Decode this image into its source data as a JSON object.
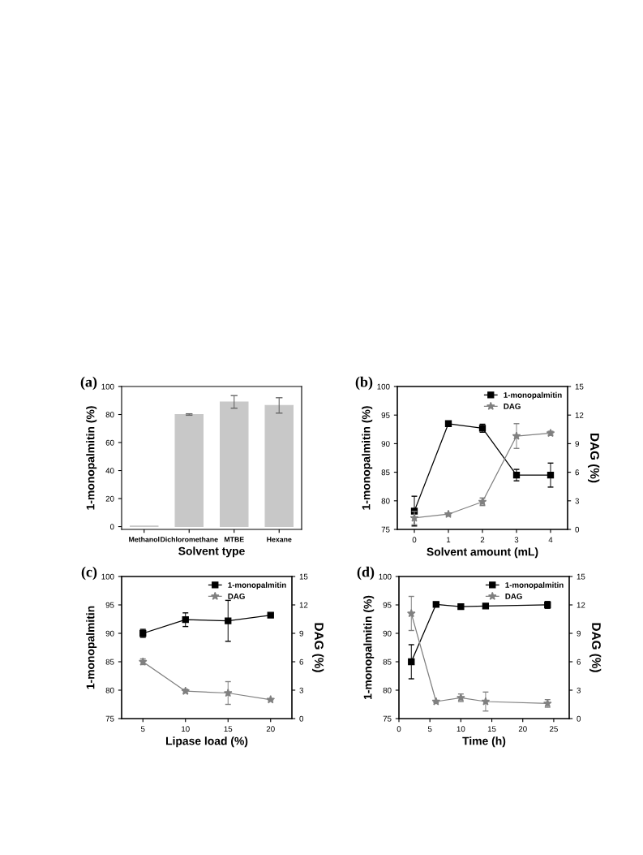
{
  "chart_data": [
    {
      "type": "bar",
      "title": "(a)",
      "xlabel": "Solvent type",
      "ylabel": "1-monopalmitin (%)",
      "categories": [
        "Methanol",
        "Dichloromethane",
        "MTBE",
        "Hexane"
      ],
      "values": [
        0.5,
        80,
        89,
        86.5
      ],
      "errors": [
        null,
        0.5,
        4.5,
        5.5
      ],
      "color": "#c8c8c8",
      "ylim": [
        -2,
        100
      ],
      "yticks": [
        0,
        20,
        40,
        60,
        80,
        100
      ],
      "grid": false
    },
    {
      "type": "line",
      "title": "(b)",
      "xlabel": "Solvent amount (mL)",
      "ylabel": "1-monopalmitin (%)",
      "y2label": "DAG (%)",
      "xlim": [
        -0.5,
        4.5
      ],
      "xticks": [
        0,
        1,
        2,
        3,
        4
      ],
      "ylim": [
        75,
        100
      ],
      "yticks": [
        75,
        80,
        85,
        90,
        95,
        100
      ],
      "y2lim": [
        0,
        15
      ],
      "y2ticks": [
        0,
        3,
        6,
        9,
        12,
        15
      ],
      "grid": false,
      "legend": "top right",
      "series": [
        {
          "name": "1-monopalmitin",
          "color": "#000000",
          "marker": "square",
          "x": [
            0,
            1,
            2,
            3,
            4
          ],
          "values": [
            78.2,
            93.5,
            92.7,
            84.5,
            84.5
          ],
          "errors": [
            2.6,
            null,
            0.7,
            1.0,
            2.1
          ]
        },
        {
          "name": "DAG",
          "color": "#808080",
          "marker": "star",
          "axis": "y2",
          "x": [
            0,
            1,
            2,
            3,
            4
          ],
          "values": [
            1.2,
            1.6,
            2.9,
            9.8,
            10.1
          ],
          "errors": [
            0.7,
            0.1,
            0.4,
            1.3,
            0.2
          ]
        }
      ]
    },
    {
      "type": "line",
      "title": "(c)",
      "xlabel": "Lipase load (%)",
      "ylabel": "1-monopalmitin",
      "y2label": "DAG (%)",
      "xlim": [
        2.5,
        22.5
      ],
      "xticks": [
        5,
        10,
        15,
        20
      ],
      "ylim": [
        75,
        100
      ],
      "yticks": [
        75,
        80,
        85,
        90,
        95,
        100
      ],
      "y2lim": [
        0,
        15
      ],
      "y2ticks": [
        0,
        3,
        6,
        9,
        12,
        15
      ],
      "grid": false,
      "legend": "top right",
      "series": [
        {
          "name": "1-monopalmitin",
          "color": "#000000",
          "marker": "square",
          "x": [
            5,
            10,
            15,
            20
          ],
          "values": [
            90.0,
            92.4,
            92.2,
            93.2
          ],
          "errors": [
            0.7,
            1.2,
            3.6,
            null
          ]
        },
        {
          "name": "DAG",
          "color": "#808080",
          "marker": "star",
          "axis": "y2",
          "x": [
            5,
            10,
            15,
            20
          ],
          "values": [
            6.0,
            2.9,
            2.7,
            2.0
          ],
          "errors": [
            0.3,
            0.2,
            1.2,
            0.1
          ]
        }
      ]
    },
    {
      "type": "line",
      "title": "(d)",
      "xlabel": "Time (h)",
      "ylabel": "1-monopalmitin (%)",
      "y2label": "DAG (%)",
      "xlim": [
        0,
        27.5
      ],
      "xticks": [
        0,
        5,
        10,
        15,
        20,
        25
      ],
      "ylim": [
        75,
        100
      ],
      "yticks": [
        75,
        80,
        85,
        90,
        95,
        100
      ],
      "y2lim": [
        0,
        15
      ],
      "y2ticks": [
        0,
        3,
        6,
        9,
        12,
        15
      ],
      "grid": false,
      "legend": "top right",
      "series": [
        {
          "name": "1-monopalmitin",
          "color": "#000000",
          "marker": "square",
          "x": [
            2,
            6,
            10,
            14,
            24
          ],
          "values": [
            85.0,
            95.1,
            94.7,
            94.8,
            95.0
          ],
          "errors": [
            3.0,
            0.2,
            null,
            null,
            0.6
          ]
        },
        {
          "name": "DAG",
          "color": "#808080",
          "marker": "star",
          "axis": "y2",
          "x": [
            2,
            6,
            10,
            14,
            24
          ],
          "values": [
            11.1,
            1.8,
            2.2,
            1.8,
            1.6
          ],
          "errors": [
            1.8,
            0.1,
            0.4,
            1.0,
            0.4
          ]
        }
      ]
    }
  ]
}
